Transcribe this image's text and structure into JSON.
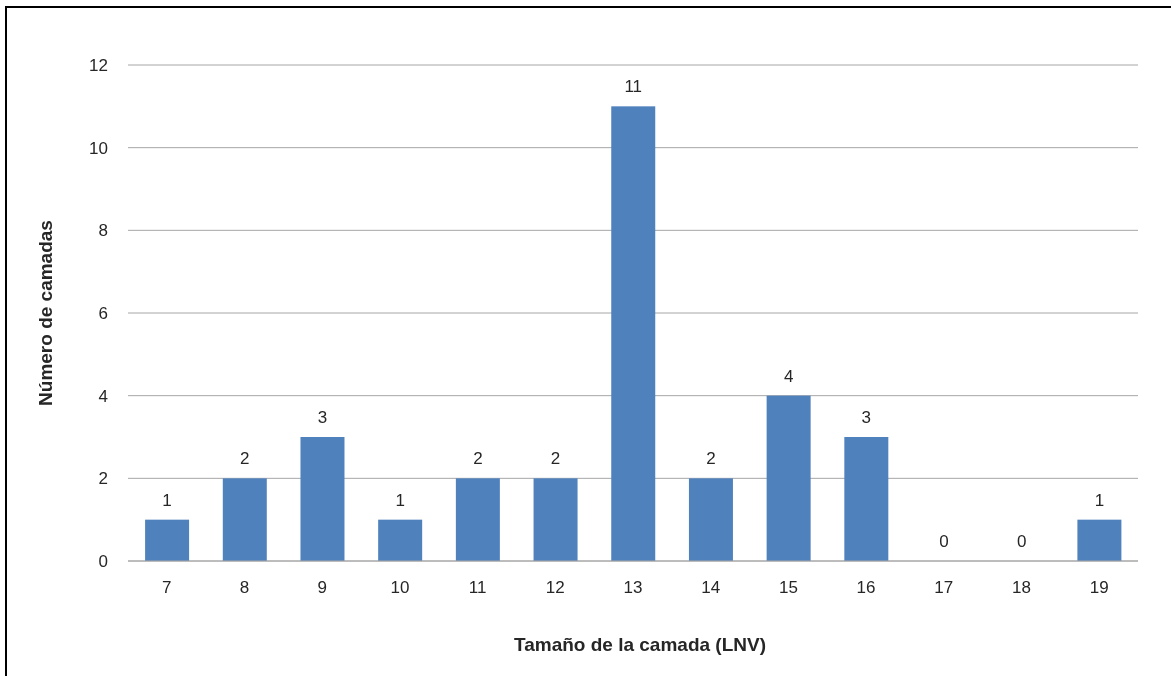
{
  "chart_data": {
    "type": "bar",
    "xlabel": "Tamaño de la camada (LNV)",
    "ylabel": "Número de camadas",
    "categories": [
      "7",
      "8",
      "9",
      "10",
      "11",
      "12",
      "13",
      "14",
      "15",
      "16",
      "17",
      "18",
      "19"
    ],
    "values": [
      1,
      2,
      3,
      1,
      2,
      2,
      11,
      2,
      4,
      3,
      0,
      0,
      1
    ],
    "color": "#4f81bd",
    "ylim": [
      0,
      12
    ],
    "yticks": [
      0,
      2,
      4,
      6,
      8,
      10,
      12
    ],
    "grid": "y",
    "data_labels": true
  }
}
